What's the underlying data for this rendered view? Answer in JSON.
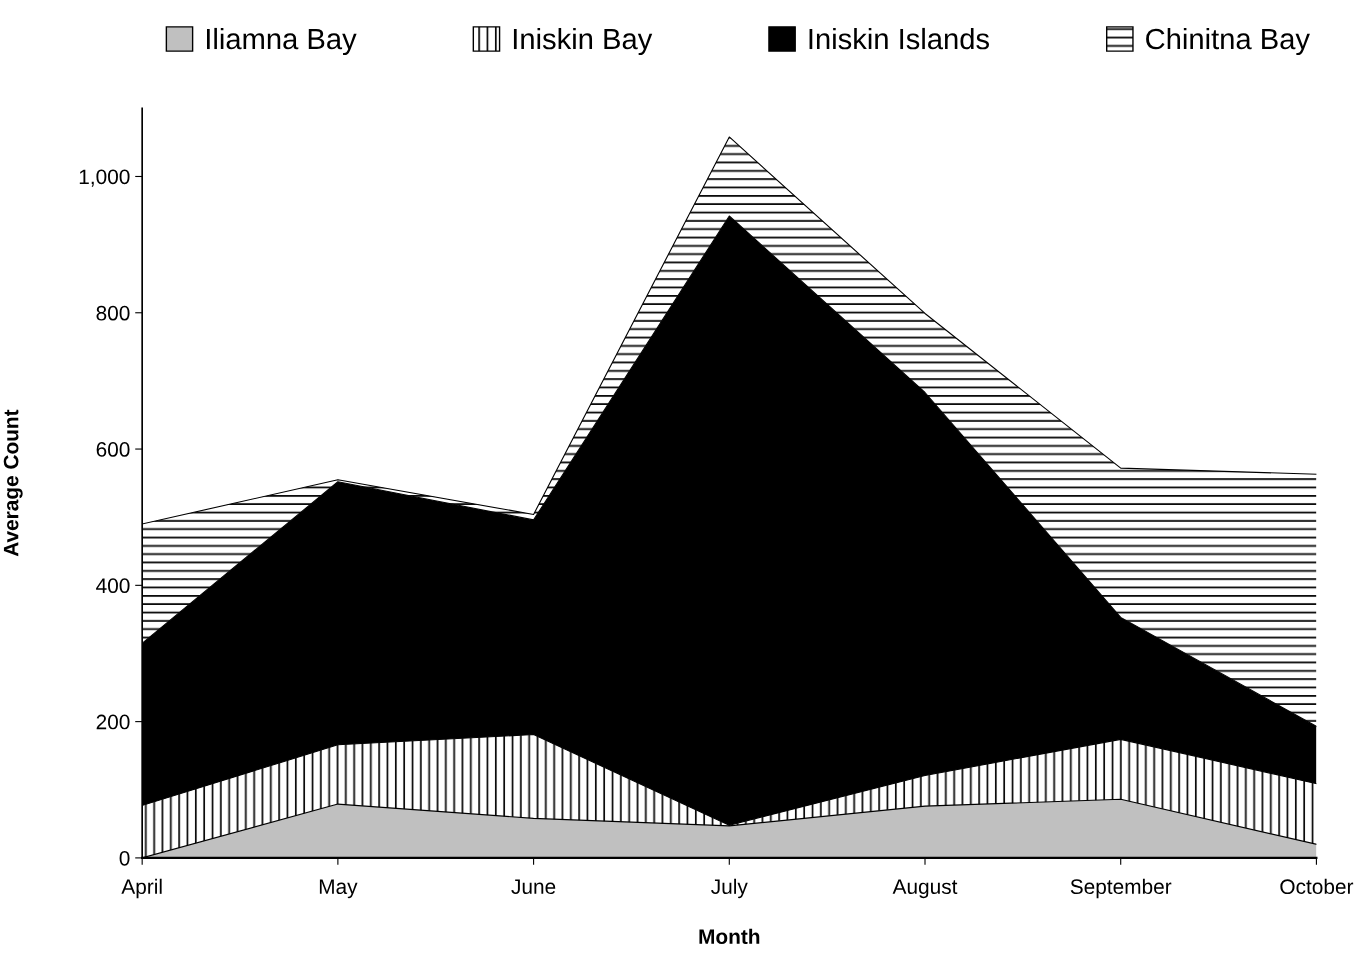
{
  "chart_data": {
    "type": "area",
    "stacked": true,
    "xlabel": "Month",
    "ylabel": "Average Count",
    "categories": [
      "April",
      "May",
      "June",
      "July",
      "August",
      "September",
      "October"
    ],
    "series": [
      {
        "name": "Iliamna Bay",
        "color": "#c0c0c0",
        "values": [
          0,
          79,
          58,
          47,
          76,
          86,
          20
        ]
      },
      {
        "name": "Iniskin Bay",
        "color": "#ffffff",
        "values": [
          77,
          87,
          123,
          1,
          45,
          88,
          89
        ]
      },
      {
        "name": "Iniskin Islands",
        "color": "#000000",
        "values": [
          238,
          386,
          315,
          894,
          562,
          179,
          84
        ]
      },
      {
        "name": "Chinitna Bay",
        "color": "#ffffff",
        "values": [
          175,
          3,
          8,
          116,
          116,
          219,
          370
        ]
      }
    ],
    "ylim": [
      0,
      1100
    ],
    "yticks": [
      0,
      200,
      400,
      600,
      800,
      {
        "value": 1000,
        "label": "1,000"
      }
    ],
    "grid": false,
    "legend": "top"
  }
}
